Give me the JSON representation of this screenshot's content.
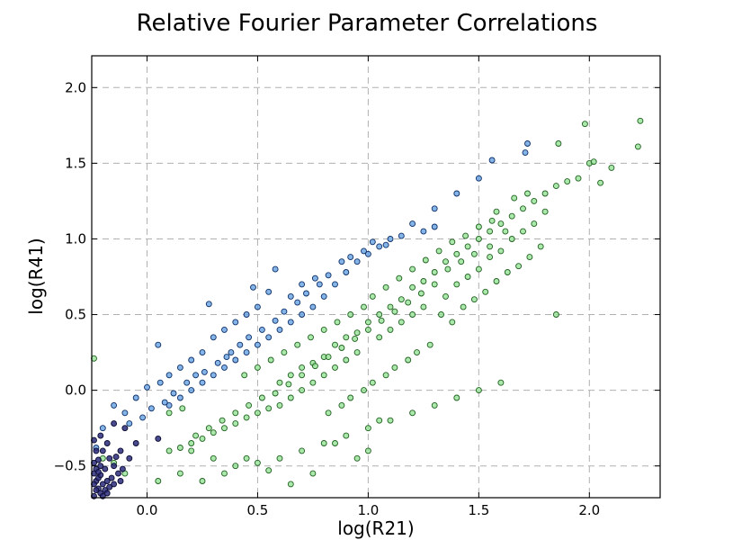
{
  "chart_data": {
    "type": "scatter",
    "title": "Relative Fourier Parameter Correlations",
    "xlabel": "log(R21)",
    "ylabel": "log(R41)",
    "xlim": [
      -0.25,
      2.32
    ],
    "ylim": [
      -0.71,
      2.21
    ],
    "x_ticks": [
      0.0,
      0.5,
      1.0,
      1.5,
      2.0
    ],
    "x_tick_labels": [
      "0.0",
      "0.5",
      "1.0",
      "1.5",
      "2.0"
    ],
    "y_ticks": [
      -0.5,
      0.0,
      0.5,
      1.0,
      1.5,
      2.0
    ],
    "y_tick_labels": [
      "−0.5",
      "0.0",
      "0.5",
      "1.0",
      "1.5",
      "2.0"
    ],
    "grid": true,
    "legend": "none",
    "colors": {
      "green_fill": "#8fe08f",
      "green_edge": "#1f5f1f",
      "blue_fill": "#5b9be0",
      "blue_edge": "#0d2f66",
      "navy_fill": "#2a2a7a",
      "navy_edge": "#0a0a30"
    },
    "series": [
      {
        "color": "#8fe08f",
        "values": [
          [
            0.6,
            0.05
          ],
          [
            0.65,
            0.1
          ],
          [
            0.7,
            0.15
          ],
          [
            0.75,
            0.18
          ],
          [
            0.8,
            0.22
          ],
          [
            0.85,
            0.3
          ],
          [
            0.9,
            0.35
          ],
          [
            0.95,
            0.38
          ],
          [
            1.0,
            0.45
          ],
          [
            1.05,
            0.5
          ],
          [
            1.1,
            0.55
          ],
          [
            1.15,
            0.6
          ],
          [
            1.2,
            0.68
          ],
          [
            1.25,
            0.72
          ],
          [
            1.3,
            0.78
          ],
          [
            1.35,
            0.85
          ],
          [
            1.4,
            0.9
          ],
          [
            1.45,
            0.95
          ],
          [
            1.5,
            1.0
          ],
          [
            1.55,
            1.05
          ],
          [
            1.6,
            1.1
          ],
          [
            1.65,
            1.15
          ],
          [
            1.7,
            1.2
          ],
          [
            1.75,
            1.25
          ],
          [
            1.8,
            1.3
          ],
          [
            1.85,
            1.35
          ],
          [
            1.9,
            1.38
          ],
          [
            1.95,
            1.4
          ],
          [
            2.0,
            1.5
          ],
          [
            2.02,
            1.51
          ],
          [
            2.1,
            1.47
          ],
          [
            2.05,
            1.37
          ],
          [
            1.98,
            1.76
          ],
          [
            2.23,
            1.78
          ],
          [
            2.22,
            1.61
          ],
          [
            1.86,
            1.63
          ],
          [
            1.72,
            1.3
          ],
          [
            1.66,
            1.27
          ],
          [
            1.58,
            1.18
          ],
          [
            1.62,
            1.05
          ],
          [
            1.55,
            0.95
          ],
          [
            1.48,
            0.9
          ],
          [
            1.42,
            0.85
          ],
          [
            1.36,
            0.8
          ],
          [
            1.3,
            0.7
          ],
          [
            1.24,
            0.64
          ],
          [
            1.18,
            0.58
          ],
          [
            1.12,
            0.52
          ],
          [
            1.06,
            0.46
          ],
          [
            1.0,
            0.4
          ],
          [
            0.94,
            0.34
          ],
          [
            0.88,
            0.28
          ],
          [
            0.82,
            0.22
          ],
          [
            0.76,
            0.16
          ],
          [
            0.7,
            0.1
          ],
          [
            0.64,
            0.04
          ],
          [
            0.58,
            -0.02
          ],
          [
            0.52,
            -0.05
          ],
          [
            0.46,
            -0.1
          ],
          [
            0.4,
            -0.15
          ],
          [
            0.34,
            -0.2
          ],
          [
            0.28,
            -0.25
          ],
          [
            0.22,
            -0.3
          ],
          [
            0.16,
            -0.12
          ],
          [
            0.1,
            -0.15
          ],
          [
            0.2,
            -0.4
          ],
          [
            0.3,
            -0.45
          ],
          [
            0.4,
            -0.5
          ],
          [
            0.5,
            -0.48
          ],
          [
            0.6,
            -0.45
          ],
          [
            0.7,
            -0.4
          ],
          [
            0.8,
            -0.35
          ],
          [
            0.9,
            -0.3
          ],
          [
            1.0,
            -0.25
          ],
          [
            1.1,
            -0.2
          ],
          [
            1.2,
            -0.15
          ],
          [
            1.3,
            -0.1
          ],
          [
            1.4,
            -0.05
          ],
          [
            1.5,
            0.0
          ],
          [
            1.6,
            0.05
          ],
          [
            1.85,
            0.5
          ],
          [
            1.05,
            -0.2
          ],
          [
            1.0,
            -0.4
          ],
          [
            0.95,
            -0.45
          ],
          [
            0.85,
            -0.35
          ],
          [
            0.75,
            -0.55
          ],
          [
            0.65,
            -0.62
          ],
          [
            0.55,
            -0.53
          ],
          [
            0.45,
            -0.45
          ],
          [
            0.35,
            -0.55
          ],
          [
            0.25,
            -0.6
          ],
          [
            0.15,
            -0.55
          ],
          [
            0.05,
            -0.6
          ],
          [
            -0.1,
            -0.55
          ],
          [
            -0.15,
            -0.48
          ],
          [
            -0.2,
            -0.45
          ],
          [
            -0.24,
            0.21
          ],
          [
            1.2,
            0.5
          ],
          [
            1.25,
            0.55
          ],
          [
            1.15,
            0.45
          ],
          [
            1.1,
            0.4
          ],
          [
            1.05,
            0.35
          ],
          [
            0.95,
            0.25
          ],
          [
            0.9,
            0.2
          ],
          [
            0.85,
            0.15
          ],
          [
            0.8,
            0.1
          ],
          [
            0.75,
            0.05
          ],
          [
            0.7,
            0.0
          ],
          [
            0.65,
            -0.05
          ],
          [
            0.6,
            -0.1
          ],
          [
            0.55,
            -0.12
          ],
          [
            0.5,
            -0.15
          ],
          [
            0.45,
            -0.18
          ],
          [
            0.4,
            -0.22
          ],
          [
            0.35,
            -0.25
          ],
          [
            0.3,
            -0.28
          ],
          [
            0.25,
            -0.32
          ],
          [
            0.2,
            -0.35
          ],
          [
            0.15,
            -0.38
          ],
          [
            0.1,
            -0.4
          ],
          [
            1.35,
            0.62
          ],
          [
            1.4,
            0.7
          ],
          [
            1.45,
            0.75
          ],
          [
            1.5,
            0.8
          ],
          [
            1.55,
            0.88
          ],
          [
            1.6,
            0.92
          ],
          [
            1.65,
            1.0
          ],
          [
            1.7,
            1.05
          ],
          [
            1.75,
            1.1
          ],
          [
            1.8,
            1.18
          ],
          [
            1.28,
            0.3
          ],
          [
            1.22,
            0.25
          ],
          [
            1.18,
            0.2
          ],
          [
            1.12,
            0.15
          ],
          [
            1.08,
            0.1
          ],
          [
            1.02,
            0.05
          ],
          [
            0.98,
            0.0
          ],
          [
            0.92,
            -0.05
          ],
          [
            0.88,
            -0.1
          ],
          [
            0.82,
            -0.15
          ],
          [
            1.33,
            0.5
          ],
          [
            1.38,
            0.45
          ],
          [
            1.43,
            0.55
          ],
          [
            1.48,
            0.6
          ],
          [
            1.53,
            0.65
          ],
          [
            1.58,
            0.72
          ],
          [
            1.63,
            0.78
          ],
          [
            1.68,
            0.82
          ],
          [
            1.73,
            0.88
          ],
          [
            1.78,
            0.95
          ],
          [
            0.98,
            0.55
          ],
          [
            0.92,
            0.5
          ],
          [
            0.86,
            0.45
          ],
          [
            0.8,
            0.4
          ],
          [
            0.74,
            0.35
          ],
          [
            0.68,
            0.3
          ],
          [
            0.62,
            0.25
          ],
          [
            0.56,
            0.2
          ],
          [
            0.5,
            0.15
          ],
          [
            0.44,
            0.1
          ],
          [
            1.02,
            0.62
          ],
          [
            1.08,
            0.68
          ],
          [
            1.14,
            0.74
          ],
          [
            1.2,
            0.8
          ],
          [
            1.26,
            0.86
          ],
          [
            1.32,
            0.92
          ],
          [
            1.38,
            0.98
          ],
          [
            1.44,
            1.02
          ],
          [
            1.5,
            1.08
          ],
          [
            1.56,
            1.12
          ]
        ]
      },
      {
        "color": "#5b9be0",
        "values": [
          [
            0.1,
            -0.1
          ],
          [
            0.15,
            -0.05
          ],
          [
            0.2,
            0.0
          ],
          [
            0.25,
            0.05
          ],
          [
            0.3,
            0.1
          ],
          [
            0.35,
            0.15
          ],
          [
            0.4,
            0.2
          ],
          [
            0.45,
            0.25
          ],
          [
            0.5,
            0.3
          ],
          [
            0.55,
            0.35
          ],
          [
            0.6,
            0.4
          ],
          [
            0.65,
            0.45
          ],
          [
            0.7,
            0.5
          ],
          [
            0.75,
            0.55
          ],
          [
            0.8,
            0.62
          ],
          [
            0.85,
            0.7
          ],
          [
            0.9,
            0.78
          ],
          [
            0.95,
            0.85
          ],
          [
            1.0,
            0.9
          ],
          [
            1.05,
            0.95
          ],
          [
            1.1,
            1.0
          ],
          [
            1.2,
            1.1
          ],
          [
            1.3,
            1.2
          ],
          [
            1.4,
            1.3
          ],
          [
            1.5,
            1.4
          ],
          [
            1.56,
            1.52
          ],
          [
            1.72,
            1.63
          ],
          [
            1.71,
            1.57
          ],
          [
            1.3,
            1.08
          ],
          [
            1.25,
            1.05
          ],
          [
            0.58,
            0.8
          ],
          [
            0.48,
            0.68
          ],
          [
            0.28,
            0.57
          ],
          [
            0.05,
            0.3
          ],
          [
            0.0,
            0.02
          ],
          [
            -0.05,
            -0.05
          ],
          [
            -0.1,
            -0.15
          ],
          [
            -0.15,
            -0.1
          ],
          [
            -0.2,
            -0.25
          ],
          [
            -0.23,
            -0.38
          ],
          [
            0.38,
            0.25
          ],
          [
            0.42,
            0.3
          ],
          [
            0.46,
            0.35
          ],
          [
            0.52,
            0.4
          ],
          [
            0.58,
            0.46
          ],
          [
            0.62,
            0.52
          ],
          [
            0.68,
            0.58
          ],
          [
            0.72,
            0.64
          ],
          [
            0.78,
            0.7
          ],
          [
            0.82,
            0.76
          ],
          [
            0.18,
            0.05
          ],
          [
            0.22,
            0.1
          ],
          [
            0.26,
            0.12
          ],
          [
            0.32,
            0.18
          ],
          [
            0.36,
            0.22
          ],
          [
            0.12,
            -0.02
          ],
          [
            0.08,
            -0.08
          ],
          [
            0.02,
            -0.12
          ],
          [
            -0.02,
            -0.18
          ],
          [
            -0.08,
            -0.22
          ],
          [
            0.88,
            0.85
          ],
          [
            0.92,
            0.88
          ],
          [
            0.98,
            0.92
          ],
          [
            1.02,
            0.98
          ],
          [
            1.08,
            0.96
          ],
          [
            1.15,
            1.02
          ],
          [
            0.55,
            0.65
          ],
          [
            0.65,
            0.62
          ],
          [
            0.7,
            0.7
          ],
          [
            0.76,
            0.74
          ],
          [
            0.3,
            0.35
          ],
          [
            0.35,
            0.4
          ],
          [
            0.4,
            0.45
          ],
          [
            0.45,
            0.5
          ],
          [
            0.5,
            0.55
          ],
          [
            0.2,
            0.2
          ],
          [
            0.15,
            0.15
          ],
          [
            0.1,
            0.1
          ],
          [
            0.06,
            0.05
          ],
          [
            0.25,
            0.25
          ]
        ]
      },
      {
        "color": "#2a2a7a",
        "values": [
          [
            -0.24,
            -0.55
          ],
          [
            -0.23,
            -0.6
          ],
          [
            -0.22,
            -0.65
          ],
          [
            -0.21,
            -0.68
          ],
          [
            -0.24,
            -0.7
          ],
          [
            -0.22,
            -0.58
          ],
          [
            -0.2,
            -0.62
          ],
          [
            -0.19,
            -0.66
          ],
          [
            -0.23,
            -0.52
          ],
          [
            -0.21,
            -0.56
          ],
          [
            -0.18,
            -0.6
          ],
          [
            -0.17,
            -0.64
          ],
          [
            -0.2,
            -0.7
          ],
          [
            -0.24,
            -0.62
          ],
          [
            -0.23,
            -0.66
          ],
          [
            -0.22,
            -0.54
          ],
          [
            -0.16,
            -0.58
          ],
          [
            -0.15,
            -0.62
          ],
          [
            -0.18,
            -0.68
          ],
          [
            -0.21,
            -0.5
          ],
          [
            -0.24,
            -0.48
          ],
          [
            -0.13,
            -0.55
          ],
          [
            -0.12,
            -0.6
          ],
          [
            -0.19,
            -0.52
          ],
          [
            -0.22,
            -0.46
          ],
          [
            -0.23,
            -0.4
          ],
          [
            -0.2,
            -0.4
          ],
          [
            -0.17,
            -0.45
          ],
          [
            -0.15,
            -0.5
          ],
          [
            -0.24,
            -0.33
          ],
          [
            -0.21,
            -0.3
          ],
          [
            -0.15,
            -0.22
          ],
          [
            -0.1,
            -0.25
          ],
          [
            -0.05,
            -0.35
          ],
          [
            0.05,
            -0.32
          ],
          [
            -0.08,
            -0.45
          ],
          [
            -0.12,
            -0.4
          ],
          [
            -0.18,
            -0.35
          ],
          [
            -0.14,
            -0.44
          ],
          [
            -0.11,
            -0.52
          ]
        ]
      }
    ]
  }
}
